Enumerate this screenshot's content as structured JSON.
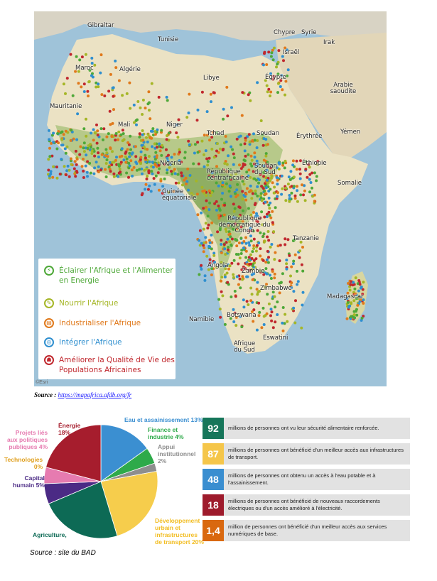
{
  "map": {
    "countries": [
      "Gibraltar",
      "Tunisie",
      "Chypre",
      "Syrie",
      "Irak",
      "Israël",
      "Maroc",
      "Algérie",
      "Libye",
      "Égypte",
      "Arabie saoudite",
      "Mauritanie",
      "Mali",
      "Niger",
      "Tchad",
      "Soudan",
      "Érythrée",
      "Yémen",
      "Nigeria",
      "République centrafricaine",
      "Soudan du Sud",
      "Éthiopie",
      "Somalie",
      "Guinée équatoriale",
      "République démocratique du Congo",
      "Tanzanie",
      "Angola",
      "Zambie",
      "Zimbabwe",
      "Madagascar",
      "Namibie",
      "Botswana",
      "Afrique du Sud",
      "Eswatini"
    ],
    "credit": "©Esri"
  },
  "legend": {
    "items": [
      {
        "label": "Éclairer l'Afrique et l'Alimenter en Energie",
        "color": "#4ea838",
        "icon": "lightning-icon"
      },
      {
        "label": "Nourrir l'Afrique",
        "color": "#a5b626",
        "icon": "leaf-icon"
      },
      {
        "label": "Industrialiser l'Afrique",
        "color": "#e0791b",
        "icon": "factory-icon"
      },
      {
        "label": "Intégrer l'Afrique",
        "color": "#2f8fcf",
        "icon": "network-icon"
      },
      {
        "label": "Améliorer la Qualité de Vie des Populations Africaines",
        "color": "#c0272d",
        "icon": "people-icon"
      }
    ]
  },
  "source1": {
    "prefix": "Source : ",
    "link": "https://mapafrica.afdb.org/fr"
  },
  "chart_data": {
    "type": "pie",
    "slices": [
      {
        "label": "Eau et assainissement 13%",
        "value": 13,
        "color": "#3b8fd1"
      },
      {
        "label": "Finance et industrie 4%",
        "value": 4,
        "color": "#2eaa4a"
      },
      {
        "label": "Appui institutionnel 2%",
        "value": 2,
        "color": "#8e8e8e"
      },
      {
        "label": "Développement urbain et infrastructures de transport 20%",
        "value": 20,
        "color": "#f6cd4c"
      },
      {
        "label": "Agriculture,",
        "value": 20,
        "color": "#0d6a55"
      },
      {
        "label": "Capital humain 5%",
        "value": 5,
        "color": "#4b2a85"
      },
      {
        "label": "Technologies 0%",
        "value": 0,
        "color": "#e0a020"
      },
      {
        "label": "Projets liés aux politiques publiques 4%",
        "value": 4,
        "color": "#e67bb0"
      },
      {
        "label": "Énergie 18%",
        "value": 18,
        "color": "#a61d2d"
      }
    ]
  },
  "pie_labels": {
    "eau": [
      "Eau et assainissement 13%"
    ],
    "finance": [
      "Finance et",
      "industrie 4%"
    ],
    "appui": [
      "Appui",
      "institutionnel",
      "2%"
    ],
    "dev": [
      "Développement",
      "urbain et",
      "infrastructures",
      "de transport 20%"
    ],
    "agri": [
      "Agriculture,"
    ],
    "capital": [
      "Capital",
      "humain 5%"
    ],
    "tech": [
      "Technologies",
      "0%"
    ],
    "projets": [
      "Projets liés",
      "aux politiques",
      "publiques 4%"
    ],
    "energie": [
      "Énergie",
      "18%"
    ]
  },
  "source2": "Source : site du BAD",
  "stats": [
    {
      "num": "92",
      "color": "#16765a",
      "text": "millions de personnes ont vu leur sécurité alimentaire renforcée."
    },
    {
      "num": "87",
      "color": "#f5c64a",
      "text": "millions de personnes ont bénéficié d'un meilleur accès aux infrastructures de transport."
    },
    {
      "num": "48",
      "color": "#3a8ed0",
      "text": "millions de personnes ont obtenu un accès à l'eau potable et à l'assainissement."
    },
    {
      "num": "18",
      "color": "#9e1b2c",
      "text": "millions de personnes ont bénéficié de nouveaux raccordements électriques ou d'un accès amélioré à l'électricité."
    },
    {
      "num": "1,4",
      "color": "#d9680f",
      "text": "million de personnes ont bénéficié d'un meilleur accès aux services numériques de base."
    }
  ]
}
